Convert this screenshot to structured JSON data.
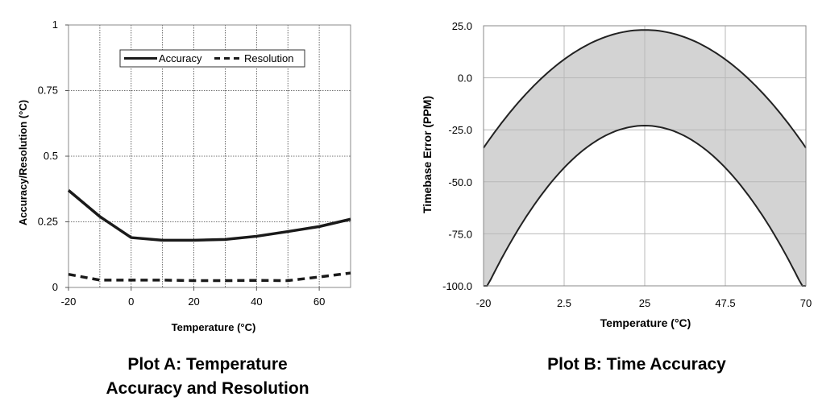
{
  "captions": {
    "plot_a_line1": "Plot A: Temperature",
    "plot_a_line2": "Accuracy and Resolution",
    "plot_b": "Plot B: Time Accuracy"
  },
  "chart_data": [
    {
      "type": "line",
      "caption": "Plot A: Temperature Accuracy and Resolution",
      "xlabel": "Temperature (°C)",
      "ylabel": "Accuracy/Resolution (°C)",
      "xlim": [
        -20,
        70
      ],
      "ylim": [
        0,
        1
      ],
      "xticks": [
        -20,
        0,
        20,
        40,
        60
      ],
      "xtick_labels": [
        "-20",
        "0",
        "20",
        "40",
        "60"
      ],
      "yticks": [
        0,
        0.25,
        0.5,
        0.75,
        1
      ],
      "ytick_labels": [
        "0",
        "0.25",
        "0.5",
        "0.75",
        "1"
      ],
      "xgrid": [
        -20,
        -10,
        0,
        10,
        20,
        30,
        40,
        50,
        60,
        70
      ],
      "grid": true,
      "legend_position": "top",
      "series": [
        {
          "name": "Accuracy",
          "style": "solid",
          "x": [
            -20,
            -10,
            0,
            10,
            20,
            30,
            40,
            50,
            60,
            70
          ],
          "y": [
            0.37,
            0.27,
            0.19,
            0.18,
            0.18,
            0.183,
            0.195,
            0.213,
            0.232,
            0.26
          ]
        },
        {
          "name": "Resolution",
          "style": "dashed",
          "x": [
            -20,
            -10,
            0,
            10,
            20,
            30,
            40,
            50,
            60,
            70
          ],
          "y": [
            0.05,
            0.028,
            0.028,
            0.028,
            0.026,
            0.026,
            0.027,
            0.026,
            0.04,
            0.055
          ]
        }
      ],
      "colors": {
        "line": "#1a1a1a",
        "grid": "#444444",
        "frame": "#888888"
      }
    },
    {
      "type": "area",
      "caption": "Plot B: Time Accuracy",
      "xlabel": "Temperature (°C)",
      "ylabel": "Timebase Error (PPM)",
      "xlim": [
        -20,
        70
      ],
      "ylim": [
        -100,
        25
      ],
      "xticks": [
        -20,
        2.5,
        25,
        47.5,
        70
      ],
      "xtick_labels": [
        "-20",
        "2.5",
        "25",
        "47.5",
        "70"
      ],
      "yticks": [
        25,
        0,
        -25,
        -50,
        -75,
        -100
      ],
      "ytick_labels": [
        "25.0",
        "0.0",
        "-25.0",
        "-50.0",
        "-75.0",
        "-100.0"
      ],
      "grid": true,
      "band": {
        "upper": {
          "peak_x": 25,
          "peak_y": 23,
          "curvature": -0.028
        },
        "lower": {
          "peak_x": 25,
          "peak_y": -23,
          "curvature": -0.04
        }
      },
      "colors": {
        "fill": "#d3d3d3",
        "line": "#222222",
        "grid": "#b8b8b8",
        "frame": "#888888"
      }
    }
  ]
}
